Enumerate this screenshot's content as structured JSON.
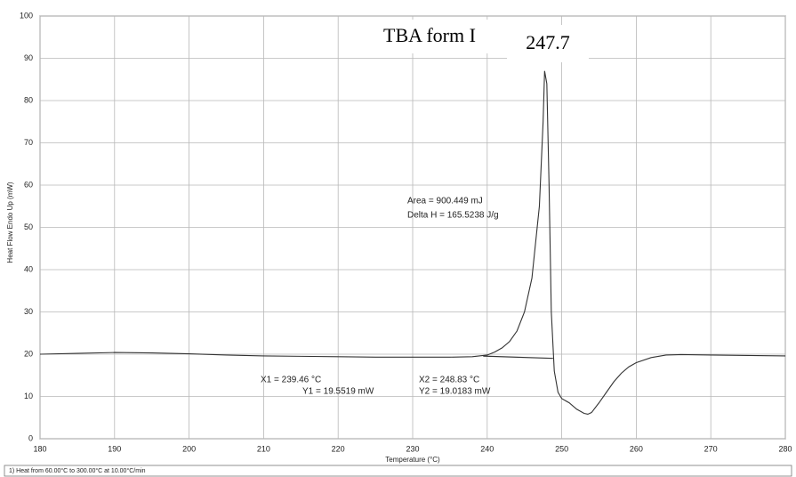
{
  "chart_data": {
    "type": "line",
    "title": "TBA form I",
    "peak_label": "247.7",
    "x_label": "Temperature (°C)",
    "y_label": "Heat Flow Endo Up (mW)",
    "footer": "1)  Heat from 60.00°C to 300.00°C at 10.00°C/min",
    "annotations": [
      "Area = 900.449 mJ",
      "Delta H = 165.5238 J/g",
      "X1 = 239.46 °C",
      "Y1 = 19.5519 mW",
      "X2 = 248.83 °C",
      "Y2 = 19.0183 mW"
    ],
    "x": [
      180,
      185,
      190,
      195,
      200,
      205,
      210,
      215,
      220,
      225,
      230,
      235,
      238,
      240,
      241,
      242,
      243,
      244,
      245,
      246,
      247,
      247.5,
      247.7,
      248,
      248.3,
      248.6,
      249,
      249.5,
      250,
      251,
      252,
      253,
      253.5,
      254,
      255,
      256,
      257,
      258,
      259,
      260,
      262,
      264,
      266,
      270,
      275,
      280
    ],
    "values": [
      20,
      20.2,
      20.4,
      20.3,
      20.1,
      19.8,
      19.6,
      19.5,
      19.4,
      19.3,
      19.3,
      19.3,
      19.4,
      19.8,
      20.5,
      21.5,
      23,
      25.5,
      30,
      38,
      55,
      75,
      87,
      84,
      60,
      30,
      16,
      11,
      9.5,
      8.5,
      7,
      6,
      5.8,
      6.2,
      8.5,
      11,
      13.5,
      15.5,
      17,
      18,
      19.2,
      19.8,
      19.9,
      19.8,
      19.7,
      19.6
    ],
    "color": "#333333",
    "baseline": {
      "x": [
        239.46,
        248.83
      ],
      "values": [
        19.5519,
        19.0183
      ],
      "color": "#333333"
    },
    "xlim": [
      180,
      280
    ],
    "ylim": [
      0,
      100
    ],
    "xticks": [
      180,
      190,
      200,
      210,
      220,
      230,
      240,
      250,
      260,
      270,
      280
    ],
    "yticks": [
      0,
      10,
      20,
      30,
      40,
      50,
      60,
      70,
      80,
      90,
      100
    ],
    "grid": true
  }
}
